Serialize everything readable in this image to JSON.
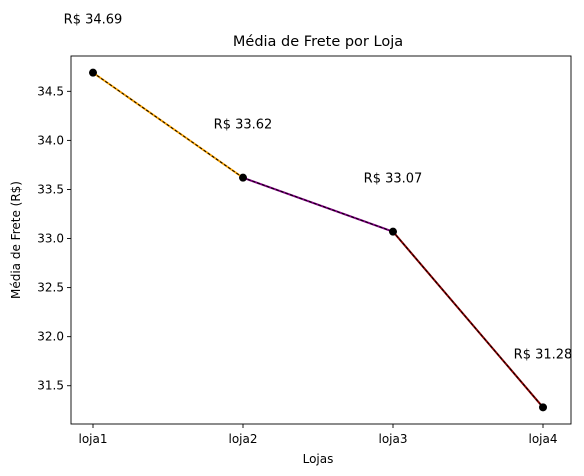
{
  "chart_data": {
    "type": "line",
    "title": "Média de Frete por Loja",
    "xlabel": "Lojas",
    "ylabel": "Média de Frete (R$)",
    "categories": [
      "loja1",
      "loja2",
      "loja3",
      "loja4"
    ],
    "values": [
      34.69,
      33.62,
      33.07,
      31.28
    ],
    "data_labels": [
      "R$ 34.69",
      "R$ 33.62",
      "R$ 33.07",
      "R$ 31.28"
    ],
    "ylim": [
      31.11,
      34.86
    ],
    "yticks": [
      31.5,
      32.0,
      32.5,
      33.0,
      33.5,
      34.0,
      34.5
    ],
    "ytick_labels": [
      "31.5",
      "32.0",
      "32.5",
      "33.0",
      "33.5",
      "34.0",
      "34.5"
    ],
    "grid": false,
    "legend": "none",
    "colors": {
      "marker": "#000000",
      "dash": "#000000",
      "segments": [
        "#ffa500",
        "#800080",
        "#8b0000"
      ]
    }
  }
}
